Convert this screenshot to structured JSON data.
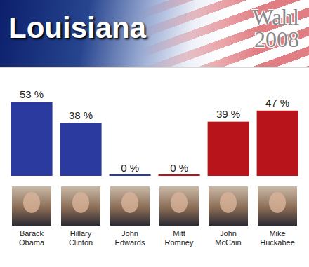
{
  "chart_data": {
    "type": "bar",
    "title": "Louisiana",
    "subtitle": "Wahl 2008",
    "categories": [
      "Barack Obama",
      "Hillary Clinton",
      "John Edwards",
      "Mitt Romney",
      "John McCain",
      "Mike Huckabee"
    ],
    "values": [
      53,
      38,
      0,
      0,
      39,
      47
    ],
    "value_labels": [
      "53 %",
      "38 %",
      "0 %",
      "0 %",
      "39 %",
      "47 %"
    ],
    "colors": [
      "#2b3a9e",
      "#2b3a9e",
      "#2b3a9e",
      "#b8141c",
      "#b8141c",
      "#b8141c"
    ],
    "ylim": [
      0,
      60
    ],
    "data_labels": true,
    "tick_labels": "x",
    "grid": false
  }
}
